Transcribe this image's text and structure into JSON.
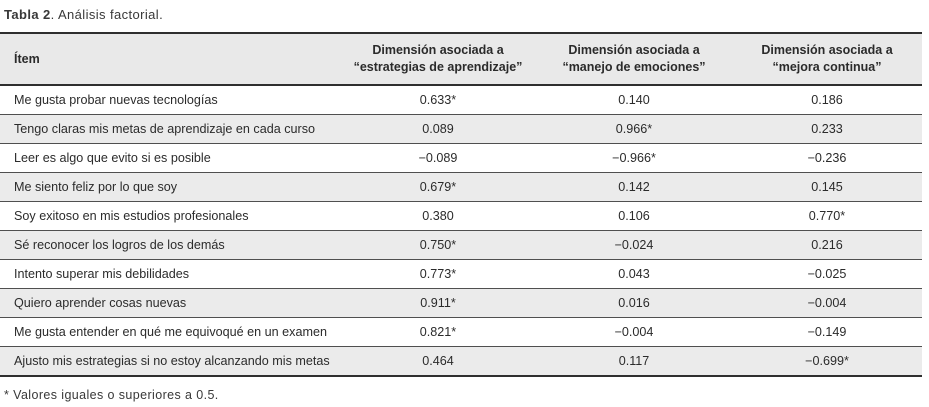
{
  "caption": {
    "label": "Tabla 2",
    "text": ". Análisis factorial."
  },
  "table": {
    "headers": [
      {
        "line1": "Ítem",
        "line2": ""
      },
      {
        "line1": "Dimensión asociada a",
        "line2": "“estrategias de aprendizaje”"
      },
      {
        "line1": "Dimensión asociada a",
        "line2": "“manejo de emociones”"
      },
      {
        "line1": "Dimensión asociada a",
        "line2": "“mejora continua”"
      }
    ],
    "rows": [
      {
        "item": "Me gusta probar nuevas tecnologías",
        "dim1": "0.633*",
        "dim2": "0.140",
        "dim3": "0.186"
      },
      {
        "item": "Tengo claras mis metas de aprendizaje en cada curso",
        "dim1": "0.089",
        "dim2": "0.966*",
        "dim3": "0.233"
      },
      {
        "item": "Leer es algo que evito si es posible",
        "dim1": "−0.089",
        "dim2": "−0.966*",
        "dim3": "−0.236"
      },
      {
        "item": "Me siento feliz por lo que soy",
        "dim1": "0.679*",
        "dim2": "0.142",
        "dim3": "0.145"
      },
      {
        "item": "Soy exitoso en mis estudios profesionales",
        "dim1": "0.380",
        "dim2": "0.106",
        "dim3": "0.770*"
      },
      {
        "item": "Sé reconocer los logros de los demás",
        "dim1": "0.750*",
        "dim2": "−0.024",
        "dim3": "0.216"
      },
      {
        "item": "Intento superar mis debilidades",
        "dim1": "0.773*",
        "dim2": "0.043",
        "dim3": "−0.025"
      },
      {
        "item": "Quiero aprender cosas nuevas",
        "dim1": "0.911*",
        "dim2": "0.016",
        "dim3": "−0.004"
      },
      {
        "item": "Me gusta entender en qué me equivoqué en un examen",
        "dim1": "0.821*",
        "dim2": "−0.004",
        "dim3": "−0.149"
      },
      {
        "item": "Ajusto mis estrategias si no estoy alcanzando mis metas",
        "dim1": "0.464",
        "dim2": "0.117",
        "dim3": "−0.699*"
      }
    ]
  },
  "footnote": "* Valores iguales o superiores a 0.5.",
  "colors": {
    "header_bg": "#e9e9e9",
    "stripe_bg": "#ebebeb",
    "rule_dark": "#2f2f2f",
    "rule_light": "#4f4f4f",
    "text": "#2b2b2b"
  }
}
